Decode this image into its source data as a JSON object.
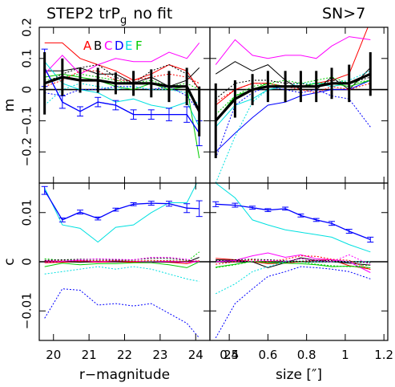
{
  "title": {
    "main": "STEP2 trP",
    "sub": "g",
    "rest": "no fit",
    "cut": "SN>7"
  },
  "legend": {
    "letters": [
      {
        "t": "A",
        "color": "#ff0000"
      },
      {
        "t": "B",
        "color": "#000000"
      },
      {
        "t": "C",
        "color": "#ff00ff"
      },
      {
        "t": "D",
        "color": "#0000ff"
      },
      {
        "t": "E",
        "color": "#00e0e0"
      },
      {
        "t": "F",
        "color": "#00cc00"
      }
    ]
  },
  "chart_data": [
    {
      "type": "line",
      "panel": "top-left",
      "ylabel": "m",
      "xlim": [
        19.6,
        24.4
      ],
      "ylim": [
        -0.3,
        0.2
      ],
      "yticks": [
        -0.2,
        -0.1,
        0,
        0.1,
        0.2
      ],
      "ytick_labels": [
        "−0.2",
        "−0.1",
        "0",
        "0.1",
        "0.2"
      ],
      "x": [
        19.75,
        20.25,
        20.75,
        21.25,
        21.75,
        22.25,
        22.75,
        23.25,
        23.75,
        24.1
      ],
      "series": [
        {
          "color": "#ff0000",
          "dash": false,
          "values": [
            0.15,
            0.15,
            0.1,
            0.08,
            0.06,
            0.03,
            0.05,
            0.08,
            0.06,
            0.0
          ]
        },
        {
          "color": "#000000",
          "dash": false,
          "values": [
            0.06,
            0.06,
            0.07,
            0.05,
            0.05,
            0.02,
            0.04,
            0.01,
            0.03,
            0.07
          ]
        },
        {
          "color": "#ff00ff",
          "dash": false,
          "values": [
            0.05,
            0.11,
            0.05,
            0.08,
            0.1,
            0.09,
            0.09,
            0.12,
            0.1,
            0.15
          ]
        },
        {
          "color": "#0000ff",
          "dash": false,
          "values": [
            0.07,
            -0.04,
            -0.07,
            -0.04,
            -0.05,
            -0.08,
            -0.08,
            -0.08,
            -0.08,
            -0.14
          ]
        },
        {
          "color": "#00e0e0",
          "dash": false,
          "values": [
            0.09,
            0.02,
            0.0,
            -0.01,
            -0.04,
            -0.03,
            -0.05,
            -0.06,
            -0.04,
            -0.12
          ]
        },
        {
          "color": "#00cc00",
          "dash": false,
          "values": [
            0.04,
            0.05,
            0.04,
            0.03,
            0.01,
            0.0,
            0.02,
            0.0,
            0.01,
            -0.22
          ]
        },
        {
          "color": "#0000ff",
          "dash": true,
          "values": [
            -0.01,
            -0.02,
            0.0,
            0.0,
            0.01,
            0.01,
            0.0,
            0.01,
            -0.02,
            -0.07
          ]
        },
        {
          "color": "#00e0e0",
          "dash": true,
          "values": [
            -0.05,
            0.0,
            0.02,
            0.01,
            0.0,
            0.01,
            0.0,
            0.0,
            -0.01,
            -0.05
          ]
        },
        {
          "color": "#00cc00",
          "dash": true,
          "values": [
            0.03,
            0.04,
            0.05,
            0.04,
            0.03,
            0.02,
            0.03,
            0.01,
            0.02,
            0.0
          ]
        },
        {
          "color": "#000000",
          "dash": true,
          "values": [
            0.02,
            0.05,
            0.07,
            0.08,
            0.04,
            0.02,
            0.06,
            0.08,
            0.05,
            0.0
          ]
        },
        {
          "color": "#ff0000",
          "dash": true,
          "values": [
            0.01,
            0.03,
            0.06,
            0.06,
            0.03,
            0.03,
            0.04,
            0.05,
            0.04,
            0.02
          ]
        }
      ],
      "errorbar_series": [
        {
          "color": "#0000ff",
          "x": [
            19.75,
            20.25,
            20.75,
            21.25,
            21.75,
            22.25,
            22.75,
            23.25,
            23.75,
            24.1
          ],
          "values": [
            0.07,
            -0.04,
            -0.07,
            -0.04,
            -0.05,
            -0.08,
            -0.08,
            -0.08,
            -0.08,
            -0.14
          ],
          "err": [
            0.06,
            0.02,
            0.015,
            0.015,
            0.015,
            0.015,
            0.015,
            0.02,
            0.025,
            0.04
          ]
        }
      ],
      "mean": {
        "values": [
          0.02,
          0.04,
          0.03,
          0.03,
          0.02,
          0.02,
          0.02,
          0.01,
          0.01,
          -0.07
        ],
        "err": [
          0.1,
          0.06,
          0.04,
          0.04,
          0.035,
          0.04,
          0.045,
          0.05,
          0.06,
          0.08
        ]
      }
    },
    {
      "type": "line",
      "panel": "top-right",
      "xlim": [
        0.3,
        1.22
      ],
      "ylim": [
        -0.3,
        0.2
      ],
      "x": [
        0.33,
        0.43,
        0.52,
        0.6,
        0.69,
        0.77,
        0.85,
        0.93,
        1.02,
        1.13
      ],
      "series": [
        {
          "color": "#ff0000",
          "dash": false,
          "values": [
            -0.05,
            0.0,
            0.02,
            0.02,
            0.01,
            0.01,
            0.02,
            0.03,
            0.05,
            0.22
          ]
        },
        {
          "color": "#000000",
          "dash": false,
          "values": [
            0.05,
            0.09,
            0.06,
            0.08,
            0.03,
            0.0,
            0.0,
            0.04,
            0.0,
            0.07
          ]
        },
        {
          "color": "#ff00ff",
          "dash": false,
          "values": [
            0.08,
            0.16,
            0.11,
            0.1,
            0.11,
            0.11,
            0.1,
            0.14,
            0.17,
            0.16
          ]
        },
        {
          "color": "#0000ff",
          "dash": false,
          "values": [
            -0.2,
            -0.14,
            -0.09,
            -0.05,
            -0.04,
            -0.02,
            -0.01,
            0.0,
            0.0,
            0.03
          ]
        },
        {
          "color": "#00e0e0",
          "dash": false,
          "values": [
            -0.12,
            -0.05,
            -0.03,
            0.0,
            0.01,
            0.01,
            0.02,
            0.01,
            0.02,
            0.05
          ]
        },
        {
          "color": "#00cc00",
          "dash": false,
          "values": [
            -0.1,
            -0.02,
            0.0,
            0.02,
            0.01,
            0.01,
            0.02,
            0.02,
            0.01,
            0.03
          ]
        },
        {
          "color": "#0000ff",
          "dash": true,
          "values": [
            -0.22,
            -0.05,
            -0.01,
            0.01,
            0.0,
            -0.01,
            0.0,
            -0.02,
            -0.03,
            -0.12
          ]
        },
        {
          "color": "#00e0e0",
          "dash": true,
          "values": [
            -0.3,
            -0.15,
            -0.04,
            0.0,
            0.01,
            0.02,
            0.02,
            0.02,
            0.03,
            0.06
          ]
        },
        {
          "color": "#00cc00",
          "dash": true,
          "values": [
            -0.08,
            -0.02,
            0.01,
            0.02,
            0.03,
            0.02,
            0.03,
            0.04,
            0.02,
            0.03
          ]
        },
        {
          "color": "#000000",
          "dash": true,
          "values": [
            -0.03,
            0.02,
            0.03,
            0.03,
            0.02,
            0.02,
            0.01,
            0.03,
            0.02,
            0.04
          ]
        },
        {
          "color": "#ff0000",
          "dash": true,
          "values": [
            -0.04,
            0.0,
            0.02,
            0.02,
            0.01,
            0.0,
            -0.01,
            0.01,
            0.0,
            0.02
          ]
        }
      ],
      "mean": {
        "values": [
          -0.1,
          -0.03,
          0.0,
          0.01,
          0.01,
          0.01,
          0.01,
          0.02,
          0.02,
          0.05
        ],
        "err": [
          0.12,
          0.06,
          0.05,
          0.05,
          0.05,
          0.05,
          0.05,
          0.05,
          0.06,
          0.07
        ]
      }
    },
    {
      "type": "line",
      "panel": "bottom-left",
      "ylabel": "c",
      "xlabel": "r−magnitude",
      "xlim": [
        19.6,
        24.4
      ],
      "ylim": [
        -0.016,
        0.016
      ],
      "xticks": [
        20,
        21,
        22,
        23,
        24,
        25
      ],
      "yticks": [
        -0.01,
        0,
        0.01
      ],
      "ytick_labels": [
        "−0.01",
        "0",
        "0.01"
      ],
      "x": [
        19.75,
        20.25,
        20.75,
        21.25,
        21.75,
        22.25,
        22.75,
        23.25,
        23.75,
        24.1
      ],
      "series": [
        {
          "color": "#00e0e0",
          "dash": false,
          "values": [
            0.015,
            0.0075,
            0.0068,
            0.004,
            0.007,
            0.0075,
            0.01,
            0.012,
            0.012,
            0.017
          ]
        },
        {
          "color": "#ff0000",
          "dash": false,
          "values": [
            -0.0002,
            -0.0001,
            0.0,
            -0.0001,
            0.0,
            -0.0001,
            0.0,
            -0.0001,
            -0.0004,
            0.0002
          ]
        },
        {
          "color": "#000000",
          "dash": false,
          "values": [
            0.0,
            0.0001,
            -0.0001,
            0.0001,
            0.0,
            0.0001,
            -0.0001,
            0.0,
            -0.0001,
            0.0009
          ]
        },
        {
          "color": "#ff00ff",
          "dash": false,
          "values": [
            0.0002,
            0.0001,
            0.0003,
            0.0,
            0.0002,
            0.0001,
            0.0,
            0.0001,
            -0.0001,
            0.0
          ]
        },
        {
          "color": "#00cc00",
          "dash": false,
          "values": [
            -0.001,
            -0.0003,
            -0.0006,
            -0.0004,
            -0.0004,
            -0.0002,
            -0.0002,
            -0.0006,
            -0.0012,
            0.0
          ]
        },
        {
          "color": "#0000ff",
          "dash": true,
          "values": [
            -0.0115,
            -0.0055,
            -0.0058,
            -0.0088,
            -0.0085,
            -0.009,
            -0.0085,
            -0.0105,
            -0.0125,
            -0.0155
          ]
        },
        {
          "color": "#00e0e0",
          "dash": true,
          "values": [
            -0.0025,
            -0.002,
            -0.0015,
            -0.001,
            -0.0015,
            -0.001,
            -0.0015,
            -0.0025,
            -0.0035,
            -0.004
          ]
        },
        {
          "color": "#00cc00",
          "dash": true,
          "values": [
            0.0006,
            0.0003,
            0.0004,
            0.0002,
            0.0003,
            0.0002,
            0.0001,
            0.0003,
            0.0,
            0.002
          ]
        },
        {
          "color": "#000000",
          "dash": true,
          "values": [
            0.0003,
            0.0004,
            0.0005,
            0.0005,
            0.0004,
            0.0004,
            0.0007,
            0.0007,
            0.0003,
            0.0
          ]
        },
        {
          "color": "#ff0000",
          "dash": true,
          "values": [
            0.0001,
            0.0002,
            0.0002,
            0.0002,
            0.0002,
            0.0001,
            0.0003,
            0.0002,
            0.0001,
            0.0002
          ]
        },
        {
          "color": "#ff00ff",
          "dash": true,
          "values": [
            -0.0001,
            0.0001,
            0.0004,
            0.0006,
            0.0005,
            0.0004,
            0.0009,
            0.0009,
            0.0005,
            0.0
          ]
        }
      ],
      "errorbar_series": [
        {
          "color": "#0000ff",
          "x": [
            19.75,
            20.25,
            20.75,
            21.25,
            21.75,
            22.25,
            22.75,
            23.25,
            23.75,
            24.1
          ],
          "values": [
            0.0145,
            0.0085,
            0.0101,
            0.0088,
            0.0106,
            0.0117,
            0.0119,
            0.0118,
            0.0109,
            0.0108
          ],
          "err": [
            0.0008,
            0.0004,
            0.0004,
            0.0003,
            0.0003,
            0.0003,
            0.0004,
            0.0005,
            0.0009,
            0.0016
          ]
        }
      ]
    },
    {
      "type": "line",
      "panel": "bottom-right",
      "xlabel": "size [″]",
      "xlim": [
        0.3,
        1.22
      ],
      "ylim": [
        -0.016,
        0.016
      ],
      "xticks": [
        0.4,
        0.6,
        0.8,
        1,
        1.2
      ],
      "xtick_labels": [
        "0.4",
        "0.6",
        "0.8",
        "1",
        "1.2"
      ],
      "x": [
        0.33,
        0.43,
        0.52,
        0.6,
        0.69,
        0.77,
        0.85,
        0.93,
        1.02,
        1.13
      ],
      "series": [
        {
          "color": "#00e0e0",
          "dash": false,
          "values": [
            0.016,
            0.013,
            0.0085,
            0.0075,
            0.0065,
            0.006,
            0.0055,
            0.005,
            0.0035,
            0.002
          ]
        },
        {
          "color": "#ff0000",
          "dash": false,
          "values": [
            0.0007,
            0.0004,
            0.0,
            -0.0004,
            -0.0003,
            0.0,
            0.0003,
            0.0004,
            -0.0008,
            -0.0015
          ]
        },
        {
          "color": "#000000",
          "dash": false,
          "values": [
            0.0004,
            0.0003,
            0.0,
            -0.0012,
            -0.0002,
            0.0008,
            0.0003,
            0.0,
            -0.0003,
            -0.0007
          ]
        },
        {
          "color": "#ff00ff",
          "dash": false,
          "values": [
            0.0,
            0.0003,
            0.0012,
            0.0018,
            0.0009,
            0.0014,
            0.0006,
            0.0004,
            0.0,
            -0.0022
          ]
        },
        {
          "color": "#00cc00",
          "dash": false,
          "values": [
            -0.0011,
            -0.0005,
            0.0001,
            -0.0002,
            -0.0003,
            -0.0004,
            -0.0006,
            -0.001,
            -0.0009,
            -0.0012
          ]
        },
        {
          "color": "#0000ff",
          "dash": true,
          "values": [
            -0.0155,
            -0.0085,
            -0.0055,
            -0.003,
            -0.002,
            -0.001,
            -0.0012,
            -0.0015,
            -0.002,
            -0.0035
          ]
        },
        {
          "color": "#00e0e0",
          "dash": true,
          "values": [
            -0.0065,
            -0.0045,
            -0.002,
            -0.001,
            0.0,
            0.0,
            0.0,
            0.0,
            0.0,
            0.0
          ]
        },
        {
          "color": "#00cc00",
          "dash": true,
          "values": [
            -0.0012,
            -0.0006,
            0.0001,
            0.0,
            0.0002,
            0.0,
            -0.0005,
            -0.0008,
            -0.001,
            -0.0007
          ]
        },
        {
          "color": "#000000",
          "dash": true,
          "values": [
            0.0002,
            0.0004,
            0.0005,
            0.0004,
            0.0002,
            0.0001,
            0.0003,
            0.0002,
            0.0,
            -0.0002
          ]
        },
        {
          "color": "#ff0000",
          "dash": true,
          "values": [
            -0.0005,
            0.0,
            0.0004,
            0.0,
            0.0005,
            0.0012,
            0.0011,
            0.0005,
            0.0003,
            -0.0016
          ]
        },
        {
          "color": "#ff00ff",
          "dash": true,
          "values": [
            0.0,
            0.0002,
            0.0001,
            0.0003,
            0.0001,
            0.0006,
            0.0003,
            0.0,
            0.0014,
            -0.0006
          ]
        }
      ],
      "errorbar_series": [
        {
          "color": "#0000ff",
          "x": [
            0.33,
            0.43,
            0.52,
            0.6,
            0.69,
            0.77,
            0.85,
            0.93,
            1.02,
            1.13
          ],
          "values": [
            0.0117,
            0.0115,
            0.011,
            0.0105,
            0.0108,
            0.0094,
            0.0085,
            0.0078,
            0.0062,
            0.0045
          ],
          "err": [
            0.0005,
            0.0004,
            0.0003,
            0.0003,
            0.0003,
            0.0003,
            0.0003,
            0.0004,
            0.0004,
            0.0005
          ]
        }
      ]
    }
  ]
}
